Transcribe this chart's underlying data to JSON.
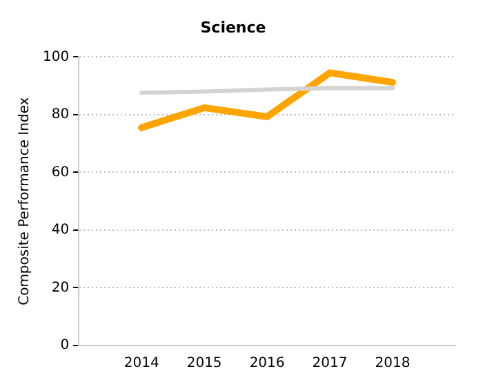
{
  "chart_data": {
    "type": "line",
    "title": "Science",
    "ylabel": "Composite Performance Index",
    "x": [
      2014,
      2015,
      2016,
      2017,
      2018
    ],
    "xlim": [
      2013,
      2019
    ],
    "xticks": [
      2014,
      2015,
      2016,
      2017,
      2018
    ],
    "ylim": [
      0,
      100
    ],
    "yticks": [
      0,
      20,
      40,
      60,
      80,
      100
    ],
    "grid": "y",
    "legend": false,
    "marker": "none",
    "series": [
      {
        "color": "#d3d3d3",
        "values": [
          87.6,
          88.0,
          88.7,
          89.2,
          89.2
        ]
      },
      {
        "color": "#ffa500",
        "values": [
          75.5,
          82.4,
          79.3,
          94.5,
          91.2
        ]
      }
    ]
  }
}
